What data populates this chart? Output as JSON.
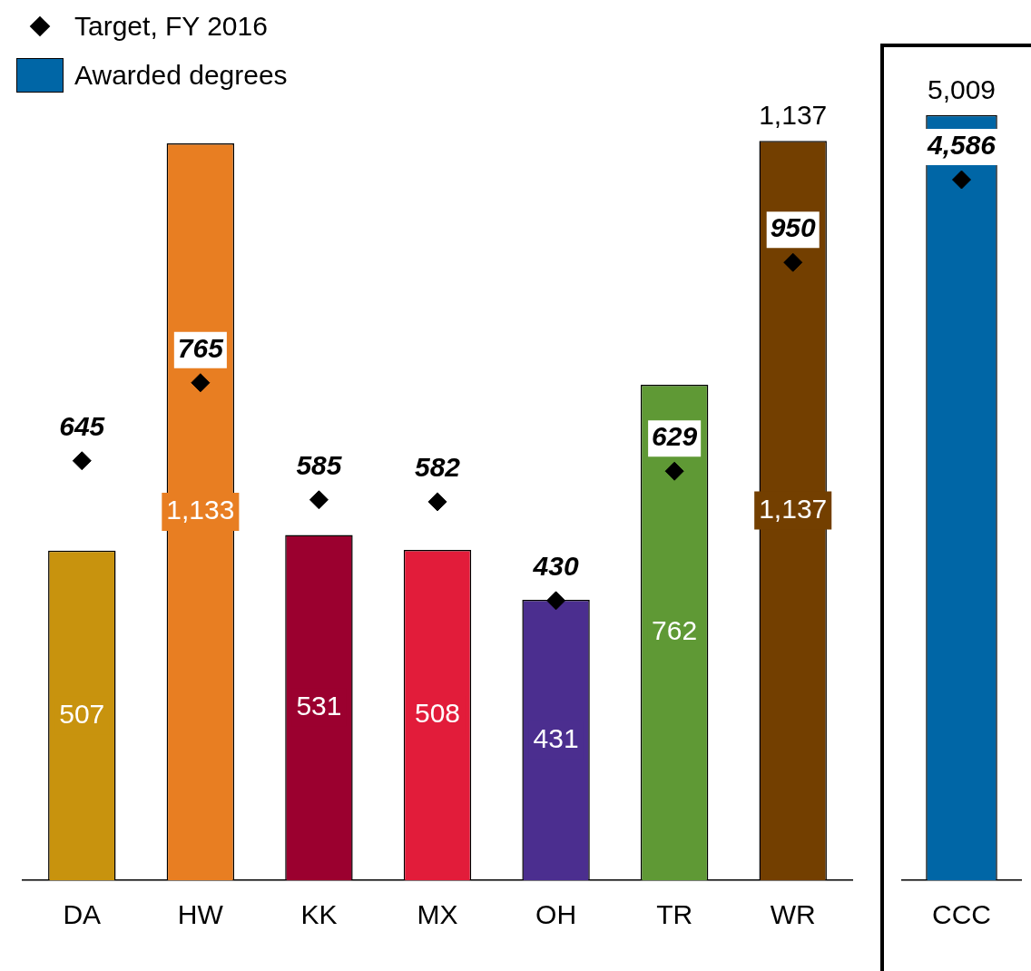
{
  "chart_data": [
    {
      "type": "bar",
      "categories": [
        "DA",
        "HW",
        "KK",
        "MX",
        "OH",
        "TR",
        "WR"
      ],
      "tick_labels": "x",
      "grid": false,
      "legend": "top left",
      "marker": "diamond",
      "series": [
        {
          "type": "scatter",
          "name": "Target, FY 2016",
          "color": "#000000",
          "x": [
            "DA",
            "HW",
            "KK",
            "MX",
            "OH",
            "TR",
            "WR"
          ],
          "values": [
            645,
            765,
            585,
            582,
            430,
            629,
            950
          ],
          "value_labels": [
            "645",
            "765",
            "585",
            "582",
            "430",
            "629",
            "950"
          ]
        },
        {
          "name": "Awarded degrees",
          "color": "#0066a6",
          "colors": [
            "#c8930e",
            "#e87e22",
            "#9b002f",
            "#e21c3a",
            "#4b2e8f",
            "#5f9935",
            "#733f00"
          ],
          "values": [
            507,
            1133,
            531,
            508,
            431,
            762,
            1137
          ],
          "value_labels": [
            "507",
            "1,133",
            "531",
            "508",
            "431",
            "762",
            "1,137"
          ]
        }
      ],
      "totals": [
        null,
        null,
        null,
        null,
        null,
        null,
        "1,137"
      ]
    },
    {
      "type": "bar",
      "categories": [
        "CCC"
      ],
      "tick_labels": "x",
      "grid": false,
      "marker": "diamond",
      "series": [
        {
          "type": "scatter",
          "color": "#000000",
          "x": [
            "CCC"
          ],
          "values": [
            4586
          ],
          "value_labels": [
            "4,586"
          ]
        },
        {
          "color": "#0066a6",
          "values": [
            5009
          ],
          "value_labels": [
            "5,009"
          ]
        }
      ]
    }
  ]
}
